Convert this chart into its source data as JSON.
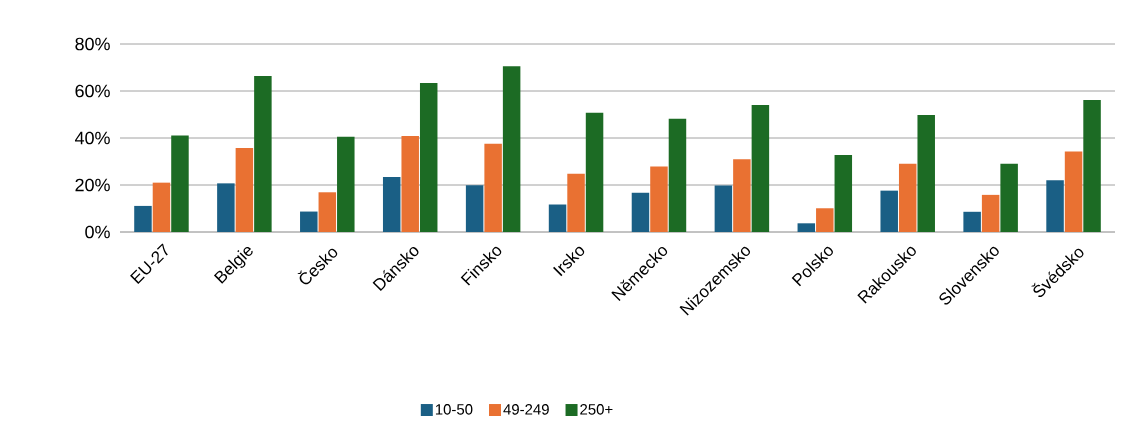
{
  "chart_data": {
    "type": "bar",
    "categories": [
      "EU-27",
      "Belgie",
      "Česko",
      "Dánsko",
      "Finsko",
      "Irsko",
      "Německo",
      "Nizozemsko",
      "Polsko",
      "Rakousko",
      "Slovensko",
      "Švédsko"
    ],
    "series": [
      {
        "name": "10-50",
        "color": "#1a5f85",
        "values": [
          11.1,
          20.7,
          8.7,
          23.4,
          19.9,
          11.7,
          16.7,
          19.8,
          3.7,
          17.6,
          8.6,
          22.0
        ]
      },
      {
        "name": "49-249",
        "color": "#e97132",
        "values": [
          21.0,
          35.7,
          16.9,
          40.9,
          37.6,
          24.8,
          27.9,
          31.0,
          10.1,
          29.0,
          15.8,
          34.3
        ]
      },
      {
        "name": "250+",
        "color": "#1c6b24",
        "values": [
          41.1,
          66.4,
          40.5,
          63.4,
          70.5,
          50.7,
          48.2,
          54.0,
          32.8,
          49.8,
          29.0,
          56.2
        ]
      }
    ],
    "ylim": [
      0,
      80
    ],
    "yticks": [
      {
        "value": 0,
        "label": "0%"
      },
      {
        "value": 20,
        "label": "20%"
      },
      {
        "value": 40,
        "label": "40%"
      },
      {
        "value": 60,
        "label": "60%"
      },
      {
        "value": 80,
        "label": "80%"
      }
    ],
    "grid": "y",
    "legend": "bottom"
  }
}
